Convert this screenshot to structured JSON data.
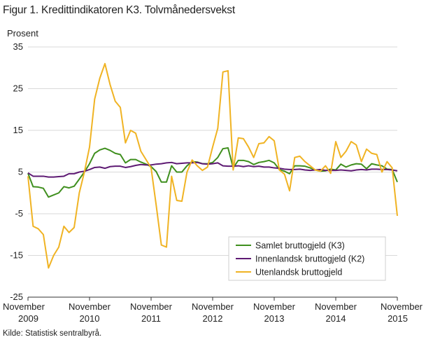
{
  "chart_data": {
    "type": "line",
    "title": "Figur 1. Kredittindikatoren K3. Tolvmånedersvekst",
    "ylabel": "Prosent",
    "ylim": [
      -25,
      35
    ],
    "yticks": [
      "35",
      "25",
      "15",
      "5",
      "-5",
      "-15",
      "-25"
    ],
    "ytick_values": [
      35,
      25,
      15,
      5,
      -5,
      -15,
      -25
    ],
    "xlim": [
      0,
      72
    ],
    "xticks": [
      {
        "month": "November",
        "year": "2009",
        "x": 0
      },
      {
        "month": "November",
        "year": "2010",
        "x": 12
      },
      {
        "month": "November",
        "year": "2011",
        "x": 24
      },
      {
        "month": "November",
        "year": "2012",
        "x": 36
      },
      {
        "month": "November",
        "year": "2013",
        "x": 48
      },
      {
        "month": "November",
        "year": "2014",
        "x": 60
      },
      {
        "month": "November",
        "year": "2015",
        "x": 72
      }
    ],
    "grid": true,
    "legend_position": "bottom-right",
    "series": [
      {
        "name": "Samlet bruttogjeld (K3)",
        "color": "#3f8f1e",
        "values": [
          4.7,
          1.5,
          1.4,
          1.1,
          -1.0,
          -0.5,
          0.0,
          1.5,
          1.2,
          1.6,
          3.3,
          5.0,
          7.0,
          9.5,
          10.3,
          10.7,
          10.2,
          9.5,
          9.2,
          7.2,
          8.0,
          8.0,
          7.4,
          6.9,
          6.3,
          5.1,
          2.6,
          2.6,
          6.5,
          5.0,
          5.0,
          6.5,
          7.5,
          7.4,
          7.0,
          7.0,
          7.3,
          8.5,
          10.6,
          10.8,
          6.0,
          7.8,
          7.8,
          7.5,
          6.8,
          7.3,
          7.5,
          7.8,
          7.2,
          5.6,
          5.2,
          4.6,
          6.5,
          6.5,
          6.4,
          6.0,
          5.5,
          5.2,
          5.3,
          5.7,
          5.5,
          6.9,
          6.2,
          6.7,
          7.0,
          6.9,
          5.8,
          7.0,
          6.7,
          6.5,
          5.7,
          5.6,
          2.6
        ]
      },
      {
        "name": "Innenlandsk bruttogjeld (K2)",
        "color": "#5e1a73",
        "values": [
          4.8,
          4.0,
          4.0,
          4.0,
          3.8,
          3.8,
          3.9,
          4.0,
          4.6,
          4.6,
          5.0,
          5.2,
          5.6,
          6.1,
          6.2,
          5.9,
          6.3,
          6.4,
          6.4,
          6.1,
          6.3,
          6.6,
          6.8,
          6.7,
          6.7,
          6.9,
          7.0,
          7.2,
          7.3,
          7.0,
          7.1,
          7.2,
          7.2,
          7.3,
          7.0,
          6.9,
          7.0,
          7.2,
          6.5,
          6.4,
          6.4,
          6.5,
          6.3,
          6.5,
          6.3,
          6.4,
          6.2,
          6.2,
          6.0,
          5.9,
          5.7,
          5.6,
          5.6,
          5.7,
          5.5,
          5.4,
          5.5,
          5.6,
          5.4,
          5.4,
          5.4,
          5.5,
          5.4,
          5.3,
          5.5,
          5.6,
          5.5,
          5.7,
          5.7,
          5.6,
          5.6,
          5.5,
          5.3
        ]
      },
      {
        "name": "Utenlandsk bruttogjeld",
        "color": "#f0b323",
        "values": [
          4.0,
          -8.0,
          -8.6,
          -10.0,
          -18.0,
          -15.0,
          -13.0,
          -8.0,
          -9.5,
          -8.3,
          0.0,
          5.0,
          11.0,
          22.5,
          27.5,
          31.0,
          26.0,
          22.0,
          20.5,
          12.0,
          15.0,
          14.3,
          10.0,
          8.0,
          6.0,
          -3.0,
          -12.5,
          -13.0,
          4.0,
          -1.8,
          -2.0,
          5.0,
          7.9,
          6.5,
          5.4,
          6.2,
          11.0,
          15.5,
          29.0,
          29.3,
          5.5,
          13.2,
          13.0,
          11.0,
          8.5,
          11.8,
          12.0,
          13.5,
          12.5,
          5.5,
          4.5,
          0.5,
          8.5,
          8.8,
          7.5,
          6.5,
          5.5,
          5.2,
          6.5,
          4.7,
          12.3,
          8.5,
          10.0,
          12.3,
          11.5,
          7.5,
          10.5,
          9.5,
          9.2,
          5.0,
          7.5,
          6.0,
          -5.5
        ]
      }
    ]
  },
  "source": "Kilde: Statistisk sentralbyrå."
}
